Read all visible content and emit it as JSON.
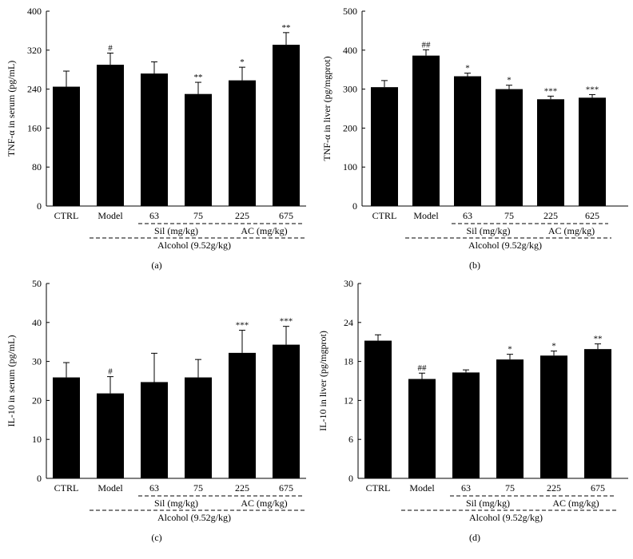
{
  "figure": {
    "panels": [
      "(a)",
      "(b)",
      "(c)",
      "(d)"
    ],
    "groups": {
      "sil": "Sil (mg/kg)",
      "ac": "AC (mg/kg)",
      "alcohol": "Alcohol (9.52g/kg)"
    }
  },
  "chart_data": [
    {
      "type": "bar",
      "panel": "(a)",
      "ylabel": "TNF-α in serum (pg/mL)",
      "categories": [
        "CTRL",
        "Model",
        "63",
        "75",
        "225",
        "675"
      ],
      "values": [
        245,
        290,
        272,
        230,
        258,
        331
      ],
      "errors": [
        32,
        24,
        24,
        24,
        27,
        25
      ],
      "significance": [
        "",
        "#",
        "",
        "**",
        "*",
        "**"
      ],
      "ylim": [
        0,
        400
      ],
      "yticks": [
        "0",
        "80",
        "160",
        "240",
        "320",
        "400"
      ],
      "groups": {
        "sil": "Sil (mg/kg)",
        "ac": "AC (mg/kg)",
        "alcohol": "Alcohol (9.52g/kg)"
      }
    },
    {
      "type": "bar",
      "panel": "(b)",
      "ylabel": "TNF-α in liver (pg/mgprot)",
      "categories": [
        "CTRL",
        "Model",
        "63",
        "75",
        "225",
        "625"
      ],
      "values": [
        305,
        386,
        333,
        300,
        274,
        278
      ],
      "errors": [
        17,
        15,
        8,
        10,
        8,
        8
      ],
      "significance": [
        "",
        "##",
        "*",
        "*",
        "***",
        "***"
      ],
      "ylim": [
        0,
        500
      ],
      "yticks": [
        "0",
        "100",
        "200",
        "300",
        "400",
        "500"
      ],
      "groups": {
        "sil": "Sil (mg/kg)",
        "ac": "AC (mg/kg)",
        "alcohol": "Alcohol (9.52g/kg)"
      }
    },
    {
      "type": "bar",
      "panel": "(c)",
      "ylabel": "IL-10 in serum (pg/mL)",
      "categories": [
        "CTRL",
        "Model",
        "63",
        "75",
        "225",
        "675"
      ],
      "values": [
        25.9,
        21.8,
        24.7,
        25.9,
        32.2,
        34.3
      ],
      "errors": [
        3.8,
        4.3,
        7.4,
        4.6,
        5.8,
        4.7
      ],
      "significance": [
        "",
        "#",
        "",
        "",
        "***",
        "***"
      ],
      "ylim": [
        0,
        50
      ],
      "yticks": [
        "0",
        "10",
        "20",
        "30",
        "40",
        "50"
      ],
      "groups": {
        "sil": "Sil (mg/kg)",
        "ac": "AC (mg/kg)",
        "alcohol": "Alcohol (9.52g/kg)"
      }
    },
    {
      "type": "bar",
      "panel": "(d)",
      "ylabel": "IL-10 in liver (pg/mgprot)",
      "categories": [
        "CTRL",
        "Model",
        "63",
        "75",
        "225",
        "675"
      ],
      "values": [
        21.2,
        15.3,
        16.3,
        18.3,
        18.9,
        19.9
      ],
      "errors": [
        0.9,
        0.9,
        0.4,
        0.8,
        0.7,
        0.8
      ],
      "significance": [
        "",
        "##",
        "",
        "*",
        "*",
        "**"
      ],
      "ylim": [
        0,
        30
      ],
      "yticks": [
        "0",
        "6",
        "12",
        "18",
        "24",
        "30"
      ],
      "groups": {
        "sil": "Sil (mg/kg)",
        "ac": "AC (mg/kg)",
        "alcohol": "Alcohol (9.52g/kg)"
      }
    }
  ]
}
